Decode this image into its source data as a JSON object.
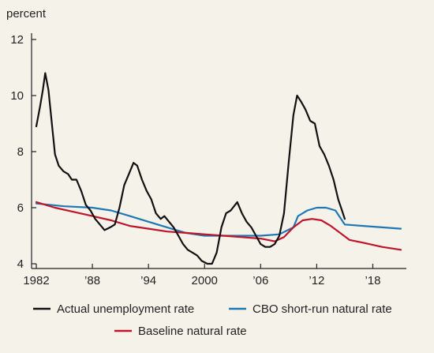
{
  "chart_data": {
    "type": "line",
    "ylabel": "percent",
    "ylim": [
      4,
      12
    ],
    "xlim": [
      1982,
      2021
    ],
    "y_ticks": [
      4,
      6,
      8,
      10,
      12
    ],
    "x_ticks": [
      {
        "value": 1982,
        "label": "1982"
      },
      {
        "value": 1988,
        "label": "’88"
      },
      {
        "value": 1994,
        "label": "’94"
      },
      {
        "value": 2000,
        "label": "2000"
      },
      {
        "value": 2006,
        "label": "’06"
      },
      {
        "value": 2012,
        "label": "’12"
      },
      {
        "value": 2018,
        "label": "’18"
      }
    ],
    "series": [
      {
        "name": "Actual unemployment rate",
        "color": "#111111",
        "points": [
          [
            1982.0,
            8.9
          ],
          [
            1982.4,
            9.6
          ],
          [
            1982.7,
            10.2
          ],
          [
            1982.95,
            10.8
          ],
          [
            1983.3,
            10.2
          ],
          [
            1983.6,
            9.2
          ],
          [
            1984.0,
            7.9
          ],
          [
            1984.4,
            7.5
          ],
          [
            1984.9,
            7.3
          ],
          [
            1985.4,
            7.2
          ],
          [
            1985.8,
            7.0
          ],
          [
            1986.3,
            7.0
          ],
          [
            1986.8,
            6.6
          ],
          [
            1987.3,
            6.1
          ],
          [
            1987.8,
            5.9
          ],
          [
            1988.3,
            5.6
          ],
          [
            1988.8,
            5.4
          ],
          [
            1989.3,
            5.2
          ],
          [
            1989.9,
            5.3
          ],
          [
            1990.4,
            5.4
          ],
          [
            1990.9,
            6.0
          ],
          [
            1991.4,
            6.8
          ],
          [
            1991.9,
            7.2
          ],
          [
            1992.4,
            7.6
          ],
          [
            1992.8,
            7.5
          ],
          [
            1993.3,
            7.0
          ],
          [
            1993.8,
            6.6
          ],
          [
            1994.3,
            6.3
          ],
          [
            1994.8,
            5.8
          ],
          [
            1995.3,
            5.6
          ],
          [
            1995.7,
            5.7
          ],
          [
            1996.2,
            5.5
          ],
          [
            1996.7,
            5.3
          ],
          [
            1997.2,
            5.0
          ],
          [
            1997.7,
            4.7
          ],
          [
            1998.2,
            4.5
          ],
          [
            1998.7,
            4.4
          ],
          [
            1999.2,
            4.3
          ],
          [
            1999.7,
            4.1
          ],
          [
            2000.3,
            4.0
          ],
          [
            2000.8,
            4.0
          ],
          [
            2001.3,
            4.4
          ],
          [
            2001.8,
            5.3
          ],
          [
            2002.3,
            5.8
          ],
          [
            2002.8,
            5.9
          ],
          [
            2003.5,
            6.2
          ],
          [
            2004.0,
            5.8
          ],
          [
            2004.5,
            5.5
          ],
          [
            2005.0,
            5.3
          ],
          [
            2005.5,
            5.0
          ],
          [
            2006.0,
            4.7
          ],
          [
            2006.5,
            4.6
          ],
          [
            2007.0,
            4.6
          ],
          [
            2007.5,
            4.7
          ],
          [
            2008.0,
            5.0
          ],
          [
            2008.5,
            5.8
          ],
          [
            2009.0,
            7.6
          ],
          [
            2009.5,
            9.3
          ],
          [
            2009.9,
            10.0
          ],
          [
            2010.3,
            9.8
          ],
          [
            2010.8,
            9.5
          ],
          [
            2011.3,
            9.1
          ],
          [
            2011.8,
            9.0
          ],
          [
            2012.3,
            8.2
          ],
          [
            2012.8,
            7.9
          ],
          [
            2013.3,
            7.5
          ],
          [
            2013.8,
            7.0
          ],
          [
            2014.3,
            6.3
          ],
          [
            2014.7,
            5.9
          ],
          [
            2015.0,
            5.6
          ]
        ]
      },
      {
        "name": "CBO short-run natural rate",
        "color": "#1f78b4",
        "points": [
          [
            1982,
            6.15
          ],
          [
            1985,
            6.05
          ],
          [
            1988,
            6.0
          ],
          [
            1990,
            5.9
          ],
          [
            1992,
            5.7
          ],
          [
            1994,
            5.5
          ],
          [
            1996,
            5.3
          ],
          [
            1998,
            5.1
          ],
          [
            2000,
            5.0
          ],
          [
            2002,
            5.0
          ],
          [
            2004,
            5.0
          ],
          [
            2006,
            5.0
          ],
          [
            2008,
            5.05
          ],
          [
            2009.5,
            5.3
          ],
          [
            2010,
            5.7
          ],
          [
            2011,
            5.9
          ],
          [
            2012,
            6.0
          ],
          [
            2013,
            6.0
          ],
          [
            2014,
            5.9
          ],
          [
            2015,
            5.4
          ],
          [
            2017,
            5.35
          ],
          [
            2019,
            5.3
          ],
          [
            2021,
            5.25
          ]
        ]
      },
      {
        "name": "Baseline natural rate",
        "color": "#c0142a",
        "points": [
          [
            1982,
            6.2
          ],
          [
            1984,
            6.0
          ],
          [
            1986,
            5.85
          ],
          [
            1988,
            5.7
          ],
          [
            1990,
            5.55
          ],
          [
            1992,
            5.35
          ],
          [
            1994,
            5.25
          ],
          [
            1996,
            5.15
          ],
          [
            1998,
            5.1
          ],
          [
            2000,
            5.05
          ],
          [
            2002,
            5.0
          ],
          [
            2004,
            4.95
          ],
          [
            2006,
            4.9
          ],
          [
            2007.5,
            4.8
          ],
          [
            2008.5,
            4.95
          ],
          [
            2009.5,
            5.3
          ],
          [
            2010.5,
            5.55
          ],
          [
            2011.5,
            5.6
          ],
          [
            2012.5,
            5.55
          ],
          [
            2013.5,
            5.35
          ],
          [
            2014.5,
            5.1
          ],
          [
            2015.5,
            4.85
          ],
          [
            2017,
            4.75
          ],
          [
            2019,
            4.6
          ],
          [
            2021,
            4.5
          ]
        ]
      }
    ]
  }
}
